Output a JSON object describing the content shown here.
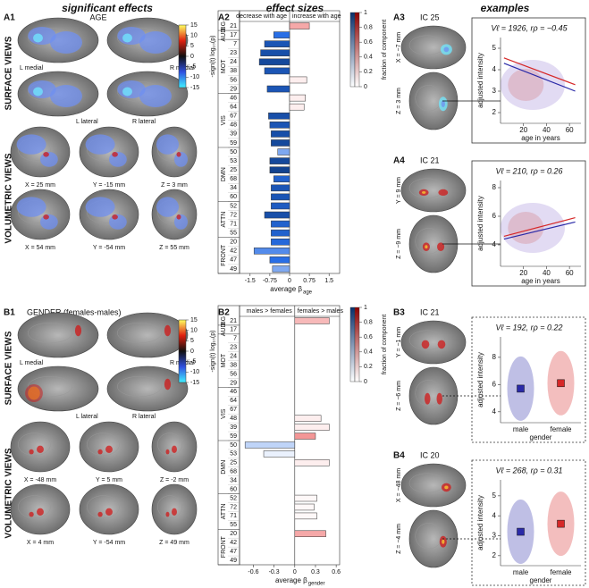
{
  "figure": {
    "headers": [
      "significant effects",
      "effect sizes",
      "examples"
    ]
  },
  "panels": {
    "A1": {
      "label": "A1",
      "title": "AGE",
      "surface_label": "SURFACE VIEWS",
      "volumetric_label": "VOLUMETRIC VIEWS",
      "surface_views": [
        "L medial",
        "R medial",
        "L lateral",
        "R lateral"
      ],
      "slices": [
        "X = 25 mm",
        "Y = -15 mm",
        "Z = 3 mm",
        "X = 54 mm",
        "Y = -54 mm",
        "Z = 55 mm"
      ],
      "colorbar": {
        "label": "-sign(t) log₁₀(p)",
        "lim": [
          -15,
          15
        ],
        "ticks": [
          15,
          10,
          5,
          0,
          -5,
          -10,
          -15
        ]
      }
    },
    "A3": {
      "label": "A3",
      "ic": "IC 25",
      "slices": [
        "X = −7 mm",
        "Z = 3 mm"
      ]
    },
    "A4": {
      "label": "A4",
      "ic": "IC 21",
      "slices": [
        "Y = 9 mm",
        "Z = −9 mm"
      ]
    },
    "B1": {
      "label": "B1",
      "title": "GENDER (females-males)",
      "surface_label": "SURFACE VIEWS",
      "volumetric_label": "VOLUMETRIC VIEWS",
      "surface_views": [
        "L medial",
        "R medial",
        "L lateral",
        "R lateral"
      ],
      "slices": [
        "X = -48 mm",
        "Y = 5 mm",
        "Z = -2 mm",
        "X = 4 mm",
        "Y = -54 mm",
        "Z = 49 mm"
      ],
      "colorbar": {
        "label": "-sign(t) log₁₀(p)",
        "lim": [
          -15,
          15
        ],
        "ticks": [
          15,
          10,
          5,
          0,
          -5,
          -10,
          -15
        ]
      }
    },
    "B3": {
      "label": "B3",
      "ic": "IC 21",
      "slices": [
        "Y = −1 mm",
        "Z = −6 mm"
      ]
    },
    "B4": {
      "label": "B4",
      "ic": "IC 20",
      "slices": [
        "X = −48 mm",
        "Z = −4 mm"
      ]
    }
  },
  "chart_data": [
    {
      "type": "barh",
      "panel": "A2",
      "header_left": "decrease with age",
      "header_right": "increase with age",
      "x_label": "average β",
      "x_label_sub": "age",
      "groups": [
        {
          "label": "BG",
          "categories": [
            "21"
          ]
        },
        {
          "label": "AUD",
          "categories": [
            "17"
          ]
        },
        {
          "label": "MOT",
          "categories": [
            "7",
            "23",
            "24",
            "38",
            "56",
            "29"
          ]
        },
        {
          "label": "VIS",
          "categories": [
            "46",
            "64",
            "67",
            "48",
            "39",
            "59"
          ]
        },
        {
          "label": "DMN",
          "categories": [
            "50",
            "53",
            "25",
            "68",
            "34",
            "60"
          ]
        },
        {
          "label": "ATTN",
          "categories": [
            "52",
            "72",
            "71",
            "55"
          ]
        },
        {
          "label": "FRONT",
          "categories": [
            "20",
            "42",
            "47",
            "49"
          ]
        }
      ],
      "values": [
        0.75,
        -0.6,
        -0.95,
        -1.1,
        -1.15,
        -0.95,
        0.65,
        -0.85,
        0.6,
        0.55,
        -0.8,
        -0.75,
        -0.7,
        -0.7,
        -0.45,
        -0.75,
        -0.75,
        -0.6,
        -0.7,
        -0.7,
        -0.7,
        -0.95,
        -0.7,
        -0.7,
        -0.7,
        -1.35,
        -0.75,
        -0.65
      ],
      "fractions": [
        0.25,
        0.5,
        0.7,
        0.75,
        0.8,
        0.7,
        0.05,
        0.7,
        0.05,
        0.05,
        0.75,
        0.7,
        0.75,
        0.8,
        0.3,
        0.8,
        0.85,
        0.6,
        0.7,
        0.7,
        0.65,
        0.75,
        0.6,
        0.6,
        0.55,
        0.4,
        0.5,
        0.3
      ],
      "xlim": [
        -1.9,
        1.9
      ],
      "xticks": [
        -1.5,
        -0.75,
        0,
        0.75,
        1.5
      ],
      "colorbar": {
        "label": "fraction of component",
        "lim": [
          0,
          1
        ],
        "ticks": [
          0,
          0.2,
          0.4,
          0.6,
          0.8,
          1
        ]
      }
    },
    {
      "type": "barh",
      "panel": "B2",
      "header_left": "males > females",
      "header_right": "females > males",
      "x_label": "average β",
      "x_label_sub": "gender",
      "groups": [
        {
          "label": "BG",
          "categories": [
            "21"
          ]
        },
        {
          "label": "AUD",
          "categories": [
            "17"
          ]
        },
        {
          "label": "MOT",
          "categories": [
            "7",
            "23",
            "24",
            "38",
            "56",
            "29"
          ]
        },
        {
          "label": "VIS",
          "categories": [
            "46",
            "64",
            "67",
            "48",
            "39",
            "59"
          ]
        },
        {
          "label": "DMN",
          "categories": [
            "50",
            "53",
            "25",
            "68",
            "34",
            "60"
          ]
        },
        {
          "label": "ATTN",
          "categories": [
            "52",
            "72",
            "71",
            "55"
          ]
        },
        {
          "label": "FRONT",
          "categories": [
            "20",
            "42",
            "47",
            "49"
          ]
        }
      ],
      "values": [
        0.5,
        null,
        null,
        null,
        null,
        null,
        null,
        null,
        null,
        null,
        null,
        0.38,
        0.5,
        0.3,
        -0.72,
        -0.45,
        0.5,
        null,
        null,
        null,
        0.32,
        0.28,
        0.32,
        null,
        0.45,
        null,
        null,
        null
      ],
      "fractions": [
        0.2,
        null,
        null,
        null,
        null,
        null,
        null,
        null,
        null,
        null,
        null,
        0.05,
        0.05,
        0.3,
        0.15,
        0.05,
        0.05,
        null,
        null,
        null,
        0.02,
        0.02,
        0.02,
        null,
        0.25,
        null,
        null,
        null
      ],
      "xlim": [
        -0.8,
        0.65
      ],
      "xticks": [
        -0.6,
        -0.3,
        0,
        0.3,
        0.6
      ],
      "colorbar": {
        "label": "fraction of component",
        "lim": [
          0,
          1
        ],
        "ticks": [
          0,
          0.2,
          0.4,
          0.6,
          0.8,
          1
        ]
      }
    },
    {
      "type": "scatter",
      "panel": "A3",
      "annotation": "Vℓ = 1926, rρ = −0.45",
      "x_label": "age in years",
      "y_label": "adjusted intensity",
      "xlim": [
        0,
        70
      ],
      "xticks": [
        20,
        40,
        60
      ],
      "ylim": [
        1.5,
        5.5
      ],
      "yticks": [
        2,
        3,
        4,
        5
      ],
      "fit_lines": [
        {
          "color": "#d62828",
          "x": [
            3,
            65
          ],
          "y": [
            4.55,
            3.3
          ]
        },
        {
          "color": "#2a2aa8",
          "x": [
            3,
            65
          ],
          "y": [
            4.3,
            3.0
          ]
        }
      ]
    },
    {
      "type": "scatter",
      "panel": "A4",
      "annotation": "Vℓ = 210, rρ = 0.26",
      "x_label": "age in years",
      "y_label": "adjusted intensity",
      "xlim": [
        0,
        70
      ],
      "xticks": [
        20,
        40,
        60
      ],
      "ylim": [
        2.5,
        8.5
      ],
      "yticks": [
        4,
        6,
        8
      ],
      "fit_lines": [
        {
          "color": "#d62828",
          "x": [
            3,
            65
          ],
          "y": [
            4.6,
            5.9
          ]
        },
        {
          "color": "#2a2aa8",
          "x": [
            3,
            65
          ],
          "y": [
            4.4,
            5.6
          ]
        }
      ]
    },
    {
      "type": "strip",
      "panel": "B3",
      "annotation": "Vℓ = 192, rρ = 0.22",
      "x_label": "gender",
      "y_label": "adjusted intensity",
      "categories": [
        "male",
        "female"
      ],
      "values": [
        5.7,
        6.1
      ],
      "colors": [
        "#2a2aa8",
        "#d62828"
      ],
      "ylim": [
        3.2,
        9.5
      ],
      "yticks": [
        4,
        6,
        8
      ]
    },
    {
      "type": "strip",
      "panel": "B4",
      "annotation": "Vℓ = 268, rρ = 0.31",
      "x_label": "gender",
      "y_label": "adjusted intensity",
      "categories": [
        "male",
        "female"
      ],
      "values": [
        3.2,
        3.6
      ],
      "colors": [
        "#2a2aa8",
        "#d62828"
      ],
      "ylim": [
        1.5,
        5.8
      ],
      "yticks": [
        2,
        3,
        4,
        5
      ]
    }
  ]
}
